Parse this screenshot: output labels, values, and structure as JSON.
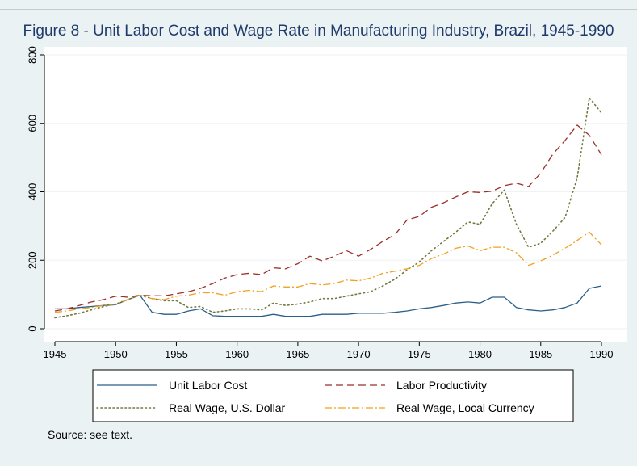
{
  "chart_data": {
    "type": "line",
    "title": "Figure 8 - Unit Labor Cost and Wage Rate in Manufacturing Industry, Brazil, 1945-1990",
    "xlabel": "",
    "ylabel": "",
    "xlim": [
      1945,
      1990
    ],
    "ylim": [
      0,
      800
    ],
    "xticks": [
      1945,
      1950,
      1955,
      1960,
      1965,
      1970,
      1975,
      1980,
      1985,
      1990
    ],
    "yticks": [
      0,
      200,
      400,
      600,
      800
    ],
    "grid": true,
    "legend_position": "bottom",
    "x": [
      1945,
      1946,
      1947,
      1948,
      1949,
      1950,
      1951,
      1952,
      1953,
      1954,
      1955,
      1956,
      1957,
      1958,
      1959,
      1960,
      1961,
      1962,
      1963,
      1964,
      1965,
      1966,
      1967,
      1968,
      1969,
      1970,
      1971,
      1972,
      1973,
      1974,
      1975,
      1976,
      1977,
      1978,
      1979,
      1980,
      1981,
      1982,
      1983,
      1984,
      1985,
      1986,
      1987,
      1988,
      1989,
      1990
    ],
    "series": [
      {
        "name": "Unit Labor Cost",
        "color": "#2a5f8a",
        "dash": "solid",
        "values": [
          58,
          58,
          62,
          65,
          68,
          70,
          85,
          98,
          48,
          42,
          42,
          52,
          58,
          38,
          36,
          36,
          36,
          36,
          42,
          36,
          36,
          36,
          42,
          42,
          42,
          45,
          45,
          45,
          48,
          52,
          58,
          62,
          68,
          75,
          78,
          75,
          92,
          92,
          62,
          55,
          52,
          55,
          62,
          75,
          118,
          125
        ]
      },
      {
        "name": "Labor Productivity",
        "color": "#9b2f2a",
        "dash": "dash",
        "values": [
          52,
          58,
          68,
          78,
          85,
          95,
          92,
          98,
          96,
          96,
          102,
          108,
          118,
          132,
          148,
          158,
          162,
          158,
          178,
          175,
          190,
          212,
          198,
          212,
          228,
          212,
          232,
          255,
          275,
          318,
          328,
          355,
          368,
          385,
          400,
          398,
          402,
          418,
          425,
          415,
          455,
          510,
          550,
          595,
          565,
          508
        ]
      },
      {
        "name": "Real Wage, U.S. Dollar",
        "color": "#6e7a3e",
        "dash": "dot",
        "values": [
          32,
          38,
          45,
          55,
          65,
          72,
          85,
          98,
          88,
          82,
          82,
          62,
          65,
          48,
          52,
          58,
          58,
          55,
          75,
          68,
          72,
          78,
          88,
          88,
          95,
          102,
          108,
          125,
          145,
          172,
          195,
          228,
          255,
          282,
          312,
          305,
          365,
          405,
          305,
          238,
          250,
          285,
          325,
          440,
          675,
          630
        ]
      },
      {
        "name": "Real Wage, Local Currency",
        "color": "#f2a01e",
        "dash": "dashdot",
        "values": [
          48,
          52,
          58,
          62,
          68,
          72,
          85,
          98,
          88,
          85,
          95,
          98,
          105,
          105,
          98,
          108,
          112,
          108,
          125,
          122,
          122,
          132,
          128,
          132,
          142,
          140,
          148,
          162,
          168,
          175,
          185,
          205,
          218,
          235,
          242,
          228,
          238,
          238,
          222,
          185,
          198,
          215,
          235,
          258,
          282,
          245
        ]
      }
    ],
    "note": "Source: see text."
  }
}
